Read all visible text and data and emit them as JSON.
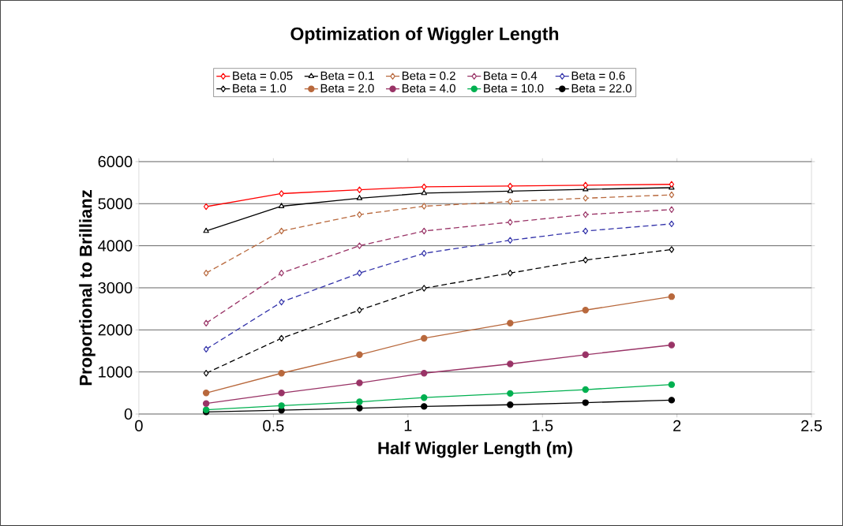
{
  "chart_data": {
    "type": "line",
    "title": "Optimization of Wiggler Length",
    "xlabel": "Half Wiggler Length (m)",
    "ylabel": "Proportional to Brillianz",
    "x": [
      0.25,
      0.53,
      0.82,
      1.06,
      1.38,
      1.66,
      1.98
    ],
    "xlim": [
      0,
      2.5
    ],
    "xticks": [
      0,
      0.5,
      1,
      1.5,
      2,
      2.5
    ],
    "ylim": [
      0,
      6000
    ],
    "yticks": [
      0,
      1000,
      2000,
      3000,
      4000,
      5000,
      6000
    ],
    "grid": "y",
    "legend": "top",
    "series": [
      {
        "name": "Beta = 0.05",
        "color": "#ff0000",
        "marker": "diamond",
        "line_style": "solid",
        "values": [
          4930,
          5240,
          5330,
          5400,
          5420,
          5440,
          5460
        ]
      },
      {
        "name": "Beta = 0.1",
        "color": "#000000",
        "marker": "triangle",
        "line_style": "solid",
        "values": [
          4350,
          4940,
          5130,
          5250,
          5300,
          5340,
          5380
        ]
      },
      {
        "name": "Beta = 0.2",
        "color": "#b8683c",
        "marker": "diamond",
        "line_style": "dashed",
        "values": [
          3350,
          4350,
          4740,
          4940,
          5050,
          5130,
          5210
        ]
      },
      {
        "name": "Beta = 0.4",
        "color": "#993366",
        "marker": "diamond",
        "line_style": "dashed",
        "values": [
          2160,
          3350,
          4000,
          4350,
          4560,
          4740,
          4860
        ]
      },
      {
        "name": "Beta = 0.6",
        "color": "#3333aa",
        "marker": "diamond",
        "line_style": "dashed",
        "values": [
          1540,
          2660,
          3350,
          3820,
          4130,
          4350,
          4520
        ]
      },
      {
        "name": "Beta = 1.0",
        "color": "#000000",
        "marker": "diamond",
        "line_style": "dashed",
        "values": [
          970,
          1800,
          2470,
          2990,
          3350,
          3660,
          3910
        ]
      },
      {
        "name": "Beta = 2.0",
        "color": "#b8683c",
        "marker": "circle",
        "line_style": "solid",
        "values": [
          500,
          970,
          1410,
          1800,
          2160,
          2470,
          2790
        ]
      },
      {
        "name": "Beta = 4.0",
        "color": "#993366",
        "marker": "circle",
        "line_style": "solid",
        "values": [
          250,
          500,
          740,
          970,
          1190,
          1410,
          1640
        ]
      },
      {
        "name": "Beta = 10.0",
        "color": "#00b050",
        "marker": "circle",
        "line_style": "solid",
        "values": [
          100,
          200,
          290,
          390,
          490,
          580,
          700
        ]
      },
      {
        "name": "Beta = 22.0",
        "color": "#000000",
        "marker": "circle",
        "line_style": "solid",
        "values": [
          50,
          90,
          140,
          180,
          220,
          270,
          330
        ]
      }
    ]
  }
}
